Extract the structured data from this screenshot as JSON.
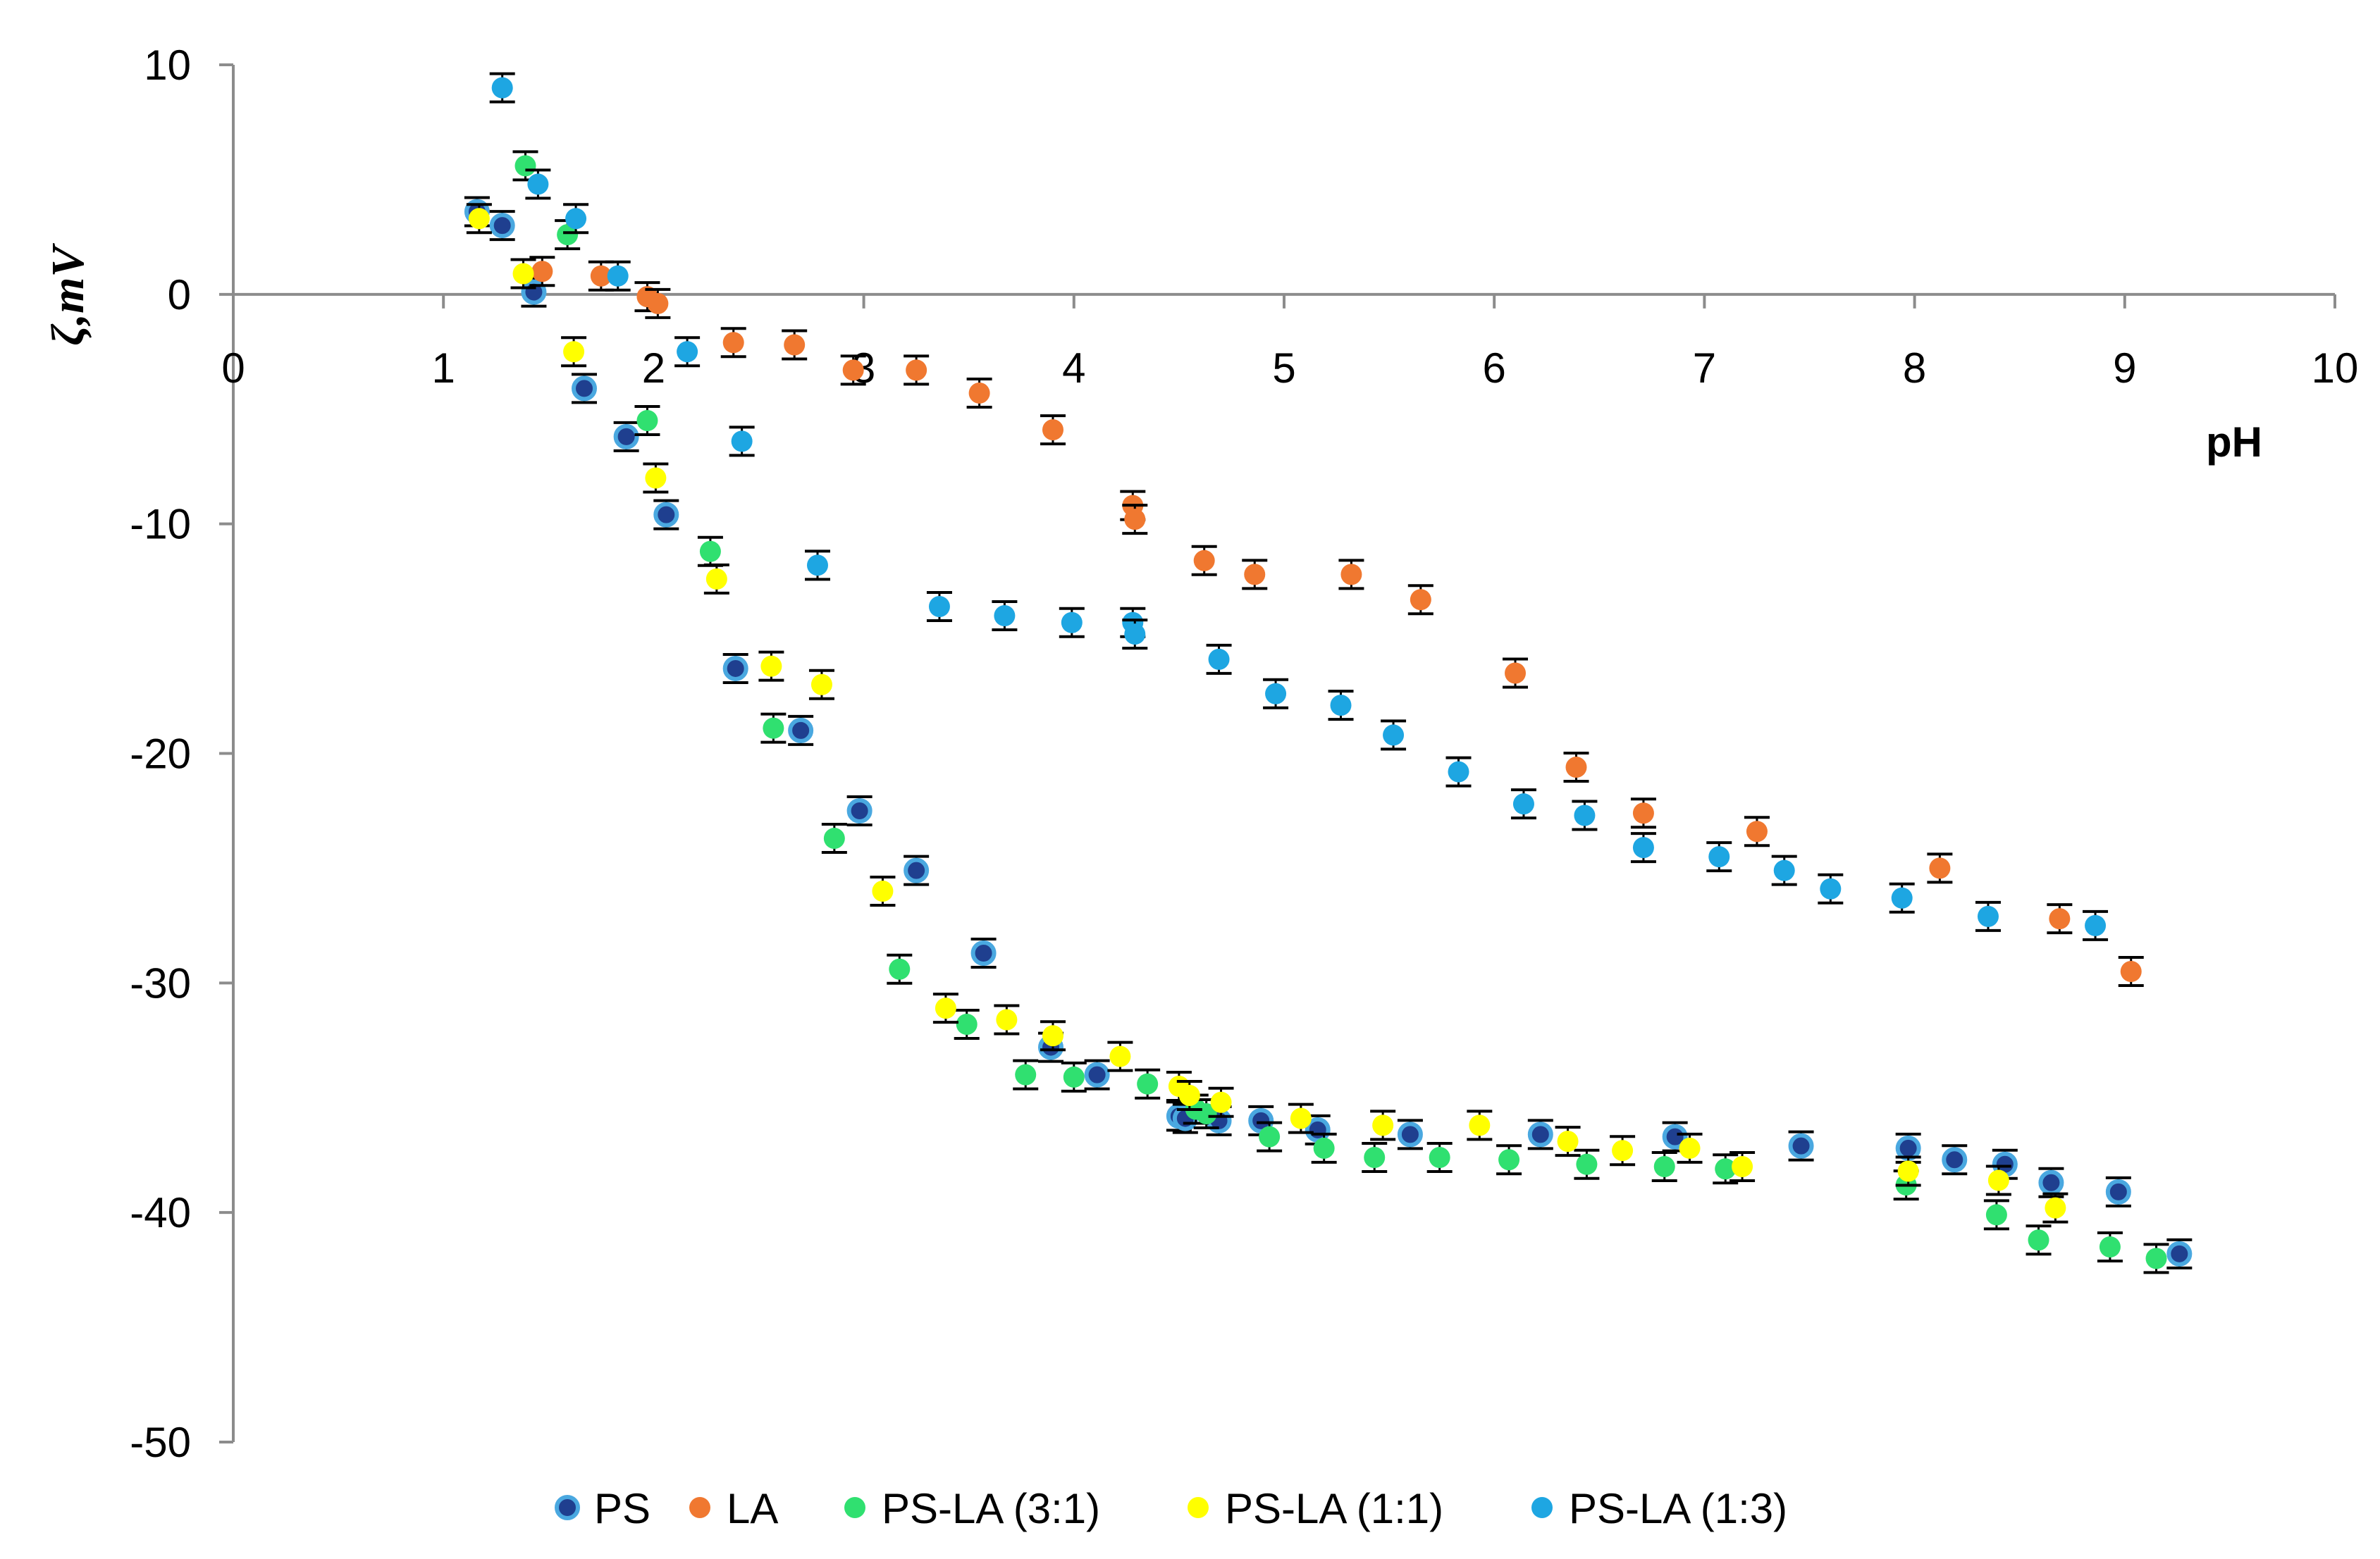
{
  "chart_data": {
    "type": "scatter",
    "title": "",
    "xlabel": "pH",
    "ylabel": "ζ,mV",
    "xlim": [
      0,
      10
    ],
    "ylim": [
      -50,
      10
    ],
    "xticks": [
      "0",
      "1",
      "2",
      "3",
      "4",
      "5",
      "6",
      "7",
      "8",
      "9",
      "10"
    ],
    "yticks": [
      "10",
      "0",
      "-10",
      "-20",
      "-30",
      "-40",
      "-50"
    ],
    "grid": false,
    "legend_position": "bottom",
    "series": [
      {
        "name": "PS",
        "color": "#1f3f8f",
        "marker": "outlined-circle",
        "points": [
          [
            1.16,
            3.6
          ],
          [
            1.28,
            3.0
          ],
          [
            1.43,
            0.1
          ],
          [
            1.67,
            -4.1
          ],
          [
            1.87,
            -6.2
          ],
          [
            2.06,
            -9.6
          ],
          [
            2.39,
            -16.3
          ],
          [
            2.7,
            -19.0
          ],
          [
            2.98,
            -22.5
          ],
          [
            3.25,
            -25.1
          ],
          [
            3.57,
            -28.7
          ],
          [
            3.89,
            -32.8
          ],
          [
            4.11,
            -34.0
          ],
          [
            4.5,
            -35.8
          ],
          [
            4.53,
            -35.9
          ],
          [
            4.69,
            -36.0
          ],
          [
            4.89,
            -36.0
          ],
          [
            5.16,
            -36.4
          ],
          [
            5.6,
            -36.6
          ],
          [
            6.22,
            -36.6
          ],
          [
            6.86,
            -36.7
          ],
          [
            7.46,
            -37.1
          ],
          [
            7.97,
            -37.2
          ],
          [
            8.19,
            -37.7
          ],
          [
            8.43,
            -37.9
          ],
          [
            8.65,
            -38.7
          ],
          [
            8.97,
            -39.1
          ],
          [
            9.26,
            -41.8
          ]
        ]
      },
      {
        "name": "LA",
        "color": "#f07830",
        "marker": "circle",
        "points": [
          [
            1.47,
            1.0
          ],
          [
            1.75,
            0.8
          ],
          [
            1.97,
            -0.1
          ],
          [
            2.02,
            -0.4
          ],
          [
            2.38,
            -2.1
          ],
          [
            2.67,
            -2.2
          ],
          [
            2.95,
            -3.3
          ],
          [
            3.25,
            -3.3
          ],
          [
            3.55,
            -4.3
          ],
          [
            3.9,
            -5.9
          ],
          [
            4.28,
            -9.2
          ],
          [
            4.29,
            -9.8
          ],
          [
            4.62,
            -11.6
          ],
          [
            4.86,
            -12.2
          ],
          [
            5.32,
            -12.2
          ],
          [
            5.65,
            -13.3
          ],
          [
            6.1,
            -16.5
          ],
          [
            6.39,
            -20.6
          ],
          [
            6.71,
            -22.6
          ],
          [
            7.25,
            -23.4
          ],
          [
            8.12,
            -25.0
          ],
          [
            8.69,
            -27.2
          ],
          [
            9.03,
            -29.5
          ]
        ]
      },
      {
        "name": "PS-LA (3:1)",
        "color": "#30e070",
        "marker": "circle",
        "points": [
          [
            1.39,
            5.6
          ],
          [
            1.59,
            2.6
          ],
          [
            1.97,
            -5.5
          ],
          [
            2.27,
            -11.2
          ],
          [
            2.57,
            -18.9
          ],
          [
            2.86,
            -23.7
          ],
          [
            3.17,
            -29.4
          ],
          [
            3.49,
            -31.8
          ],
          [
            3.77,
            -34.0
          ],
          [
            4.0,
            -34.1
          ],
          [
            4.35,
            -34.4
          ],
          [
            4.58,
            -35.5
          ],
          [
            4.63,
            -35.7
          ],
          [
            4.93,
            -36.7
          ],
          [
            5.19,
            -37.2
          ],
          [
            5.43,
            -37.6
          ],
          [
            5.74,
            -37.6
          ],
          [
            6.07,
            -37.7
          ],
          [
            6.44,
            -37.9
          ],
          [
            6.81,
            -38.0
          ],
          [
            7.1,
            -38.1
          ],
          [
            7.96,
            -38.8
          ],
          [
            8.39,
            -40.1
          ],
          [
            8.59,
            -41.2
          ],
          [
            8.93,
            -41.5
          ],
          [
            9.15,
            -42.0
          ]
        ]
      },
      {
        "name": "PS-LA (1:1)",
        "color": "#ffff00",
        "marker": "circle",
        "points": [
          [
            1.17,
            3.3
          ],
          [
            1.38,
            0.9
          ],
          [
            1.62,
            -2.5
          ],
          [
            2.01,
            -8.0
          ],
          [
            2.3,
            -12.4
          ],
          [
            2.56,
            -16.2
          ],
          [
            2.8,
            -17.0
          ],
          [
            3.09,
            -26.0
          ],
          [
            3.39,
            -31.1
          ],
          [
            3.68,
            -31.6
          ],
          [
            3.9,
            -32.3
          ],
          [
            4.22,
            -33.2
          ],
          [
            4.5,
            -34.5
          ],
          [
            4.55,
            -34.9
          ],
          [
            4.7,
            -35.2
          ],
          [
            5.08,
            -35.9
          ],
          [
            5.47,
            -36.2
          ],
          [
            5.93,
            -36.2
          ],
          [
            6.35,
            -36.9
          ],
          [
            6.61,
            -37.3
          ],
          [
            6.93,
            -37.2
          ],
          [
            7.18,
            -38.0
          ],
          [
            7.97,
            -38.2
          ],
          [
            8.4,
            -38.6
          ],
          [
            8.67,
            -39.8
          ]
        ]
      },
      {
        "name": "PS-LA (1:3)",
        "color": "#1ea6e2",
        "marker": "circle",
        "points": [
          [
            1.28,
            9.0
          ],
          [
            1.45,
            4.8
          ],
          [
            1.63,
            3.3
          ],
          [
            1.83,
            0.8
          ],
          [
            2.16,
            -2.5
          ],
          [
            2.42,
            -6.4
          ],
          [
            2.78,
            -11.8
          ],
          [
            3.36,
            -13.6
          ],
          [
            3.67,
            -14.0
          ],
          [
            3.99,
            -14.3
          ],
          [
            4.28,
            -14.3
          ],
          [
            4.29,
            -14.8
          ],
          [
            4.69,
            -15.9
          ],
          [
            4.96,
            -17.4
          ],
          [
            5.27,
            -17.9
          ],
          [
            5.52,
            -19.2
          ],
          [
            5.83,
            -20.8
          ],
          [
            6.14,
            -22.2
          ],
          [
            6.43,
            -22.7
          ],
          [
            6.71,
            -24.1
          ],
          [
            7.07,
            -24.5
          ],
          [
            7.38,
            -25.1
          ],
          [
            7.6,
            -25.9
          ],
          [
            7.94,
            -26.3
          ],
          [
            8.35,
            -27.1
          ],
          [
            8.86,
            -27.5
          ]
        ]
      }
    ]
  }
}
